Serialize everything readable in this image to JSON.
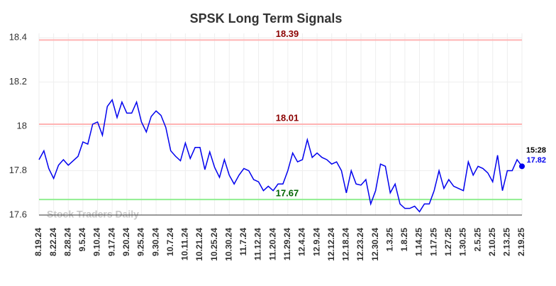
{
  "chart_data": {
    "type": "line",
    "title": "SPSK Long Term Signals",
    "categories": [
      "8.19.24",
      null,
      null,
      "8.22.24",
      null,
      null,
      "8.28.24",
      null,
      null,
      "9.5.24",
      null,
      null,
      "9.10.24",
      null,
      null,
      "9.17.24",
      null,
      null,
      "9.20.24",
      null,
      null,
      "9.25.24",
      null,
      null,
      "9.30.24",
      null,
      null,
      "10.7.24",
      null,
      null,
      "10.11.24",
      null,
      null,
      "10.21.24",
      null,
      null,
      "10.25.24",
      null,
      null,
      "10.30.24",
      null,
      null,
      "11.7.24",
      null,
      null,
      "11.12.24",
      null,
      null,
      "11.20.24",
      null,
      null,
      "11.29.24",
      null,
      null,
      "12.4.24",
      null,
      null,
      "12.9.24",
      null,
      null,
      "12.12.24",
      null,
      null,
      "12.18.24",
      null,
      null,
      "12.23.24",
      null,
      null,
      "12.30.24",
      null,
      null,
      "1.3.25",
      null,
      null,
      "1.8.25",
      null,
      null,
      "1.14.25",
      null,
      null,
      "1.17.25",
      null,
      null,
      "1.27.25",
      null,
      null,
      "1.30.25",
      null,
      null,
      "2.5.25",
      null,
      null,
      "2.10.25",
      null,
      null,
      "2.13.25",
      null,
      null,
      "2.19.25"
    ],
    "series": [
      {
        "name": "SPSK",
        "color": "#0000ee",
        "values": [
          17.85,
          17.89,
          17.81,
          17.765,
          17.825,
          17.85,
          17.825,
          17.845,
          17.865,
          17.93,
          17.92,
          18.01,
          18.02,
          17.96,
          18.09,
          18.12,
          18.04,
          18.11,
          18.06,
          18.06,
          18.11,
          18.02,
          17.975,
          18.045,
          18.07,
          18.05,
          17.995,
          17.89,
          17.865,
          17.845,
          17.925,
          17.855,
          17.905,
          17.905,
          17.805,
          17.885,
          17.815,
          17.77,
          17.85,
          17.78,
          17.74,
          17.78,
          17.81,
          17.8,
          17.76,
          17.75,
          17.71,
          17.73,
          17.71,
          17.74,
          17.74,
          17.8,
          17.88,
          17.84,
          17.85,
          17.94,
          17.86,
          17.88,
          17.86,
          17.85,
          17.83,
          17.84,
          17.8,
          17.7,
          17.8,
          17.74,
          17.735,
          17.76,
          17.65,
          17.71,
          17.83,
          17.82,
          17.7,
          17.74,
          17.65,
          17.63,
          17.63,
          17.64,
          17.615,
          17.65,
          17.65,
          17.71,
          17.8,
          17.72,
          17.76,
          17.73,
          17.72,
          17.71,
          17.84,
          17.78,
          17.82,
          17.81,
          17.79,
          17.75,
          17.87,
          17.71,
          17.8,
          17.8,
          17.85,
          17.82
        ]
      }
    ],
    "ylim": [
      17.6,
      18.42
    ],
    "yticks": [
      17.6,
      17.8,
      18,
      18.2,
      18.4
    ],
    "grid": true,
    "hlines": [
      {
        "value": 18.39,
        "color": "#ffb3b3",
        "label_color": "#8b0000"
      },
      {
        "value": 18.01,
        "color": "#ffb3b3",
        "label_color": "#8b0000"
      },
      {
        "value": 17.67,
        "color": "#90ee90",
        "label_color": "#006400"
      }
    ],
    "last_time": "15:28",
    "watermark": "Stock Traders Daily"
  }
}
